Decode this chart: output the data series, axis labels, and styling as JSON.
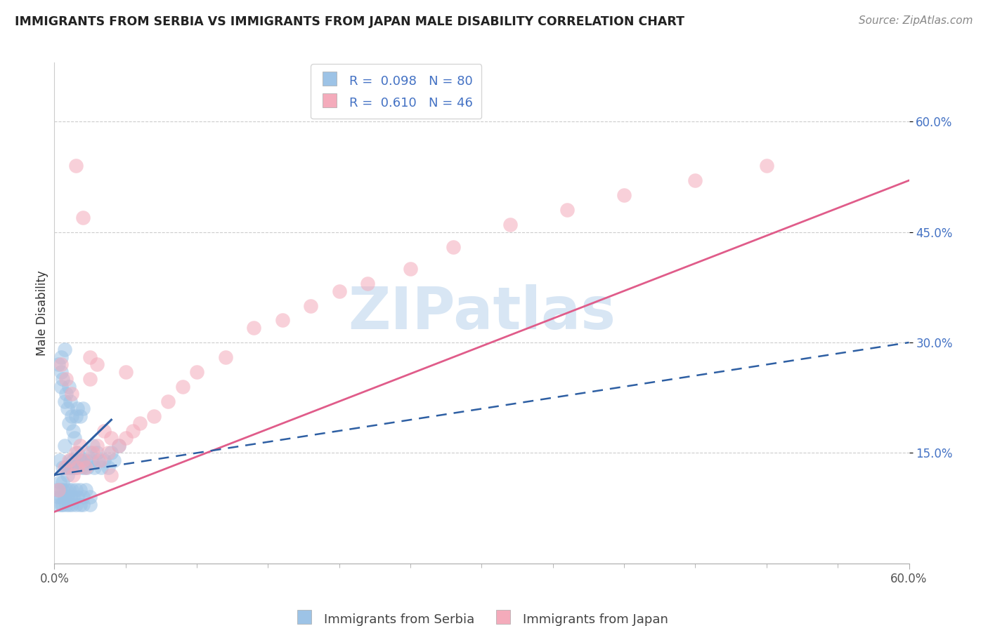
{
  "title": "IMMIGRANTS FROM SERBIA VS IMMIGRANTS FROM JAPAN MALE DISABILITY CORRELATION CHART",
  "source": "Source: ZipAtlas.com",
  "ylabel": "Male Disability",
  "serbia_R": 0.098,
  "serbia_N": 80,
  "japan_R": 0.61,
  "japan_N": 46,
  "serbia_color": "#9DC3E6",
  "japan_color": "#F4ABBB",
  "serbia_line_color": "#2E5FA3",
  "japan_line_color": "#E05C8A",
  "watermark_color": "#C8DCF0",
  "ytick_values": [
    0.15,
    0.3,
    0.45,
    0.6
  ],
  "ytick_labels": [
    "15.0%",
    "30.0%",
    "45.0%",
    "60.0%"
  ],
  "xlim": [
    0.0,
    0.6
  ],
  "ylim": [
    0.0,
    0.68
  ],
  "serbia_x": [
    0.003,
    0.004,
    0.005,
    0.005,
    0.005,
    0.006,
    0.006,
    0.007,
    0.007,
    0.007,
    0.008,
    0.008,
    0.009,
    0.009,
    0.01,
    0.01,
    0.01,
    0.011,
    0.011,
    0.012,
    0.012,
    0.013,
    0.013,
    0.014,
    0.014,
    0.015,
    0.015,
    0.016,
    0.016,
    0.017,
    0.018,
    0.018,
    0.019,
    0.02,
    0.02,
    0.021,
    0.022,
    0.023,
    0.025,
    0.026,
    0.027,
    0.028,
    0.03,
    0.031,
    0.033,
    0.035,
    0.038,
    0.04,
    0.042,
    0.045,
    0.002,
    0.003,
    0.004,
    0.004,
    0.005,
    0.006,
    0.006,
    0.007,
    0.008,
    0.009,
    0.01,
    0.011,
    0.012,
    0.013,
    0.015,
    0.016,
    0.018,
    0.02,
    0.022,
    0.025,
    0.003,
    0.005,
    0.006,
    0.008,
    0.01,
    0.012,
    0.015,
    0.018,
    0.02,
    0.025
  ],
  "serbia_y": [
    0.27,
    0.14,
    0.26,
    0.24,
    0.28,
    0.13,
    0.25,
    0.22,
    0.16,
    0.29,
    0.13,
    0.23,
    0.12,
    0.21,
    0.13,
    0.24,
    0.19,
    0.14,
    0.22,
    0.13,
    0.2,
    0.14,
    0.18,
    0.13,
    0.17,
    0.13,
    0.2,
    0.15,
    0.21,
    0.14,
    0.14,
    0.2,
    0.13,
    0.14,
    0.21,
    0.13,
    0.14,
    0.13,
    0.15,
    0.14,
    0.16,
    0.13,
    0.15,
    0.14,
    0.13,
    0.14,
    0.13,
    0.15,
    0.14,
    0.16,
    0.1,
    0.09,
    0.1,
    0.11,
    0.09,
    0.1,
    0.11,
    0.09,
    0.1,
    0.09,
    0.1,
    0.09,
    0.1,
    0.09,
    0.1,
    0.09,
    0.1,
    0.09,
    0.1,
    0.09,
    0.08,
    0.08,
    0.08,
    0.08,
    0.08,
    0.08,
    0.08,
    0.08,
    0.08,
    0.08
  ],
  "japan_x": [
    0.003,
    0.005,
    0.007,
    0.008,
    0.01,
    0.012,
    0.013,
    0.015,
    0.016,
    0.018,
    0.02,
    0.022,
    0.025,
    0.027,
    0.03,
    0.032,
    0.035,
    0.038,
    0.04,
    0.045,
    0.05,
    0.055,
    0.06,
    0.07,
    0.08,
    0.09,
    0.1,
    0.12,
    0.14,
    0.16,
    0.18,
    0.2,
    0.22,
    0.25,
    0.28,
    0.32,
    0.36,
    0.4,
    0.45,
    0.5,
    0.015,
    0.02,
    0.025,
    0.03,
    0.04,
    0.05
  ],
  "japan_y": [
    0.1,
    0.27,
    0.13,
    0.25,
    0.14,
    0.23,
    0.12,
    0.15,
    0.13,
    0.16,
    0.14,
    0.13,
    0.25,
    0.15,
    0.16,
    0.14,
    0.18,
    0.15,
    0.17,
    0.16,
    0.17,
    0.18,
    0.19,
    0.2,
    0.22,
    0.24,
    0.26,
    0.28,
    0.32,
    0.33,
    0.35,
    0.37,
    0.38,
    0.4,
    0.43,
    0.46,
    0.48,
    0.5,
    0.52,
    0.54,
    0.54,
    0.47,
    0.28,
    0.27,
    0.12,
    0.26
  ]
}
